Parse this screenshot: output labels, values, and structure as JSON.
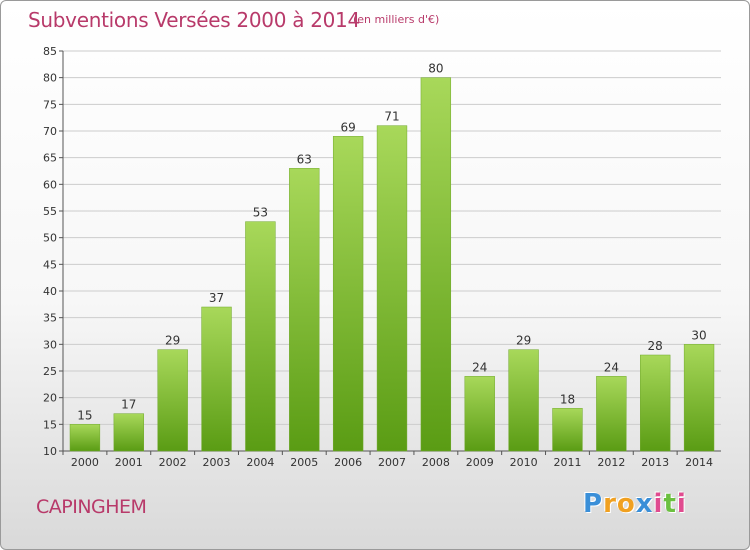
{
  "header": {
    "title": "Subventions Versées 2000 à 2014",
    "unit": "(en milliers d'€)"
  },
  "footer": {
    "city": "CAPINGHEM",
    "brand_letters": [
      "P",
      "r",
      "o",
      "x",
      "i",
      "t",
      "i"
    ],
    "brand_colors": [
      "#3a8fd8",
      "#f0a020",
      "#f0a020",
      "#3a8fd8",
      "#e04b8f",
      "#6cc040",
      "#e04b8f"
    ]
  },
  "colors": {
    "text_accent": "#b83a6a",
    "bar_top": "#a8d85a",
    "bar_bottom": "#5a9c14",
    "grid": "#cccccc"
  },
  "chart_data": {
    "type": "bar",
    "categories": [
      "2000",
      "2001",
      "2002",
      "2003",
      "2004",
      "2005",
      "2006",
      "2007",
      "2008",
      "2009",
      "2010",
      "2011",
      "2012",
      "2013",
      "2014"
    ],
    "values": [
      15,
      17,
      29,
      37,
      53,
      63,
      69,
      71,
      80,
      24,
      29,
      18,
      24,
      28,
      30
    ],
    "title": "Subventions Versées 2000 à 2014",
    "ylim": [
      10,
      85
    ],
    "yticks": [
      10,
      15,
      20,
      25,
      30,
      35,
      40,
      45,
      50,
      55,
      60,
      65,
      70,
      75,
      80,
      85
    ],
    "grid": true,
    "data_labels": true
  }
}
